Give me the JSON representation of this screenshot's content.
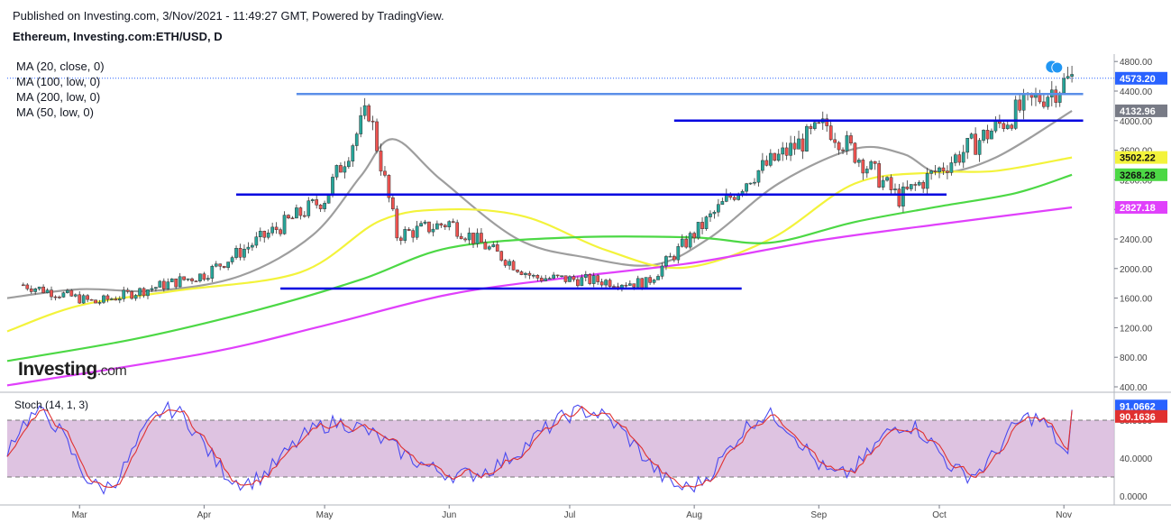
{
  "header": {
    "published": "Published on Investing.com, 3/Nov/2021 - 11:49:27 GMT, Powered by TradingView.",
    "symbol": "Ethereum, Investing.com:ETH/USD, D"
  },
  "logo": {
    "brand": "Investing",
    "suffix": ".com"
  },
  "indicators": {
    "ma20": "MA (20, close, 0)",
    "ma100": "MA (100, low, 0)",
    "ma200": "MA (200, low, 0)",
    "ma50": "MA (50, low, 0)",
    "stoch": "Stoch (14, 1, 3)"
  },
  "colors": {
    "ma20": "#9e9e9e",
    "ma100": "#4cd845",
    "ma200": "#e040fb",
    "ma50": "#f3f33b",
    "up": "#26a69a",
    "down": "#ef5350",
    "stoch_k": "#4a4af0",
    "stoch_d": "#e03030",
    "stoch_band": "#d8b8dc",
    "trendline": "#0000e0",
    "resistance": "#5b8fe8"
  },
  "chart_data": [
    {
      "type": "candlestick",
      "title": "Ethereum, Investing.com:ETH/USD, D",
      "ylim": [
        400,
        4900
      ],
      "y_ticks": [
        400,
        800,
        1200,
        1600,
        2000,
        2400,
        2800,
        3200,
        3600,
        4000,
        4400,
        4800
      ],
      "x_ticks": [
        "Mar",
        "Apr",
        "May",
        "Jun",
        "Jul",
        "Aug",
        "Sep",
        "Oct",
        "Nov"
      ],
      "last_price": 4573.2,
      "price_labels": [
        {
          "value": 4573.2,
          "color": "#2962ff"
        },
        {
          "value": 4132.96,
          "color": "#787b86"
        },
        {
          "value": 3502.22,
          "color": "#f3f33b"
        },
        {
          "value": 3268.28,
          "color": "#4cd845"
        },
        {
          "value": 2827.18,
          "color": "#e040fb"
        }
      ],
      "key_closes": [
        {
          "date": "2021-02-15",
          "close": 1780
        },
        {
          "date": "2021-03-05",
          "close": 1540
        },
        {
          "date": "2021-04-01",
          "close": 1920
        },
        {
          "date": "2021-05-01",
          "close": 2950
        },
        {
          "date": "2021-05-12",
          "close": 4150
        },
        {
          "date": "2021-05-19",
          "close": 2450
        },
        {
          "date": "2021-06-01",
          "close": 2620
        },
        {
          "date": "2021-06-22",
          "close": 1880
        },
        {
          "date": "2021-07-20",
          "close": 1800
        },
        {
          "date": "2021-08-15",
          "close": 3250
        },
        {
          "date": "2021-09-03",
          "close": 3940
        },
        {
          "date": "2021-09-21",
          "close": 2950
        },
        {
          "date": "2021-10-05",
          "close": 3500
        },
        {
          "date": "2021-10-21",
          "close": 4150
        },
        {
          "date": "2021-11-03",
          "close": 4573
        }
      ],
      "horizontal_lines": [
        {
          "value": 4360,
          "from": "2021-04-24",
          "to": "2021-11-04",
          "style": "resistance"
        },
        {
          "value": 4000,
          "from": "2021-07-27",
          "to": "2021-11-04",
          "style": "trendline"
        },
        {
          "value": 3000,
          "from": "2021-04-09",
          "to": "2021-10-01",
          "style": "trendline"
        },
        {
          "value": 1730,
          "from": "2021-04-20",
          "to": "2021-08-11",
          "style": "trendline"
        }
      ],
      "moving_averages": [
        {
          "key": "ma20",
          "points": [
            [
              "2021-02-11",
              1600
            ],
            [
              "2021-03-01",
              1720
            ],
            [
              "2021-03-20",
              1700
            ],
            [
              "2021-04-10",
              1900
            ],
            [
              "2021-04-28",
              2450
            ],
            [
              "2021-05-10",
              3250
            ],
            [
              "2021-05-18",
              3750
            ],
            [
              "2021-05-30",
              3200
            ],
            [
              "2021-06-18",
              2400
            ],
            [
              "2021-07-05",
              2150
            ],
            [
              "2021-07-22",
              2050
            ],
            [
              "2021-08-05",
              2420
            ],
            [
              "2021-08-22",
              3150
            ],
            [
              "2021-09-10",
              3620
            ],
            [
              "2021-09-22",
              3550
            ],
            [
              "2021-10-01",
              3300
            ],
            [
              "2021-10-15",
              3500
            ],
            [
              "2021-11-03",
              4132
            ]
          ]
        },
        {
          "key": "ma50",
          "points": [
            [
              "2021-02-11",
              1150
            ],
            [
              "2021-03-01",
              1500
            ],
            [
              "2021-03-25",
              1700
            ],
            [
              "2021-04-25",
              1950
            ],
            [
              "2021-05-15",
              2650
            ],
            [
              "2021-06-01",
              2800
            ],
            [
              "2021-06-20",
              2700
            ],
            [
              "2021-07-10",
              2250
            ],
            [
              "2021-07-29",
              2010
            ],
            [
              "2021-08-20",
              2400
            ],
            [
              "2021-09-10",
              3150
            ],
            [
              "2021-09-30",
              3300
            ],
            [
              "2021-10-15",
              3320
            ],
            [
              "2021-11-03",
              3502
            ]
          ]
        },
        {
          "key": "ma100",
          "points": [
            [
              "2021-02-11",
              750
            ],
            [
              "2021-03-15",
              1050
            ],
            [
              "2021-04-15",
              1450
            ],
            [
              "2021-05-10",
              1850
            ],
            [
              "2021-06-01",
              2280
            ],
            [
              "2021-07-01",
              2420
            ],
            [
              "2021-08-01",
              2420
            ],
            [
              "2021-08-20",
              2350
            ],
            [
              "2021-09-10",
              2630
            ],
            [
              "2021-10-01",
              2840
            ],
            [
              "2021-10-20",
              3020
            ],
            [
              "2021-11-03",
              3268
            ]
          ]
        },
        {
          "key": "ma200",
          "points": [
            [
              "2021-02-11",
              420
            ],
            [
              "2021-04-01",
              850
            ],
            [
              "2021-05-01",
              1230
            ],
            [
              "2021-06-01",
              1650
            ],
            [
              "2021-07-01",
              1880
            ],
            [
              "2021-08-01",
              2080
            ],
            [
              "2021-09-01",
              2380
            ],
            [
              "2021-10-01",
              2600
            ],
            [
              "2021-11-03",
              2827
            ]
          ]
        }
      ]
    },
    {
      "type": "line",
      "title": "Stoch (14, 1, 3)",
      "ylim": [
        0,
        100
      ],
      "y_ticks": [
        0,
        40,
        80
      ],
      "bands": [
        20,
        80
      ],
      "series": [
        {
          "key": "stoch_k",
          "last": 91.0662
        },
        {
          "key": "stoch_d",
          "last": 90.1636
        }
      ]
    }
  ]
}
